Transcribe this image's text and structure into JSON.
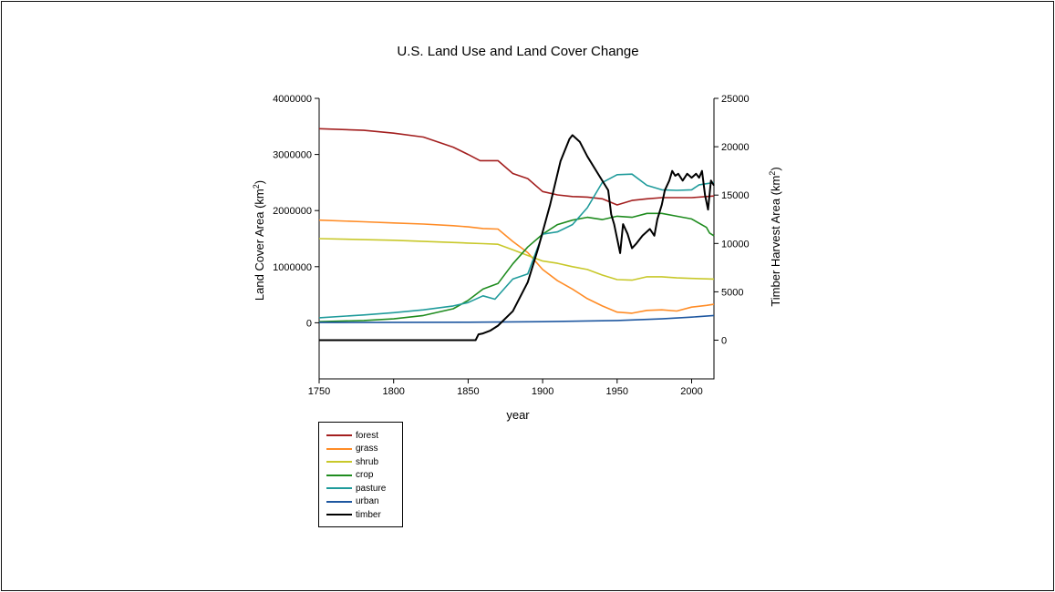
{
  "chart_data": {
    "type": "line",
    "title": "U.S. Land Use and Land Cover Change",
    "xlabel": "year",
    "ylabel_left": "Land Cover Area (km²)",
    "ylabel_right": "Timber Harvest Area (km²)",
    "xlim": [
      1750,
      2015
    ],
    "ylim_left": [
      -1000000,
      4000000
    ],
    "ylim_right": [
      -4000,
      25000
    ],
    "x_ticks": [
      1750,
      1800,
      1850,
      1900,
      1950,
      2000
    ],
    "y_ticks_left": [
      "4000000",
      "3000000",
      "2000000",
      "1000000",
      "0"
    ],
    "y_ticks_left_values": [
      4000000,
      3000000,
      2000000,
      1000000,
      0
    ],
    "y_ticks_right": [
      "25000",
      "20000",
      "15000",
      "10000",
      "5000",
      "0"
    ],
    "y_ticks_right_values": [
      25000,
      20000,
      15000,
      10000,
      5000,
      0
    ],
    "legend_placement": "bottom-left, below chart",
    "series": [
      {
        "name": "forest",
        "axis": "left",
        "color": "#a31f1f",
        "points": [
          [
            1750,
            3460000
          ],
          [
            1780,
            3430000
          ],
          [
            1800,
            3380000
          ],
          [
            1820,
            3310000
          ],
          [
            1840,
            3130000
          ],
          [
            1850,
            3000000
          ],
          [
            1858,
            2890000
          ],
          [
            1870,
            2890000
          ],
          [
            1880,
            2660000
          ],
          [
            1890,
            2570000
          ],
          [
            1900,
            2340000
          ],
          [
            1910,
            2280000
          ],
          [
            1920,
            2250000
          ],
          [
            1930,
            2240000
          ],
          [
            1940,
            2210000
          ],
          [
            1950,
            2100000
          ],
          [
            1960,
            2180000
          ],
          [
            1970,
            2210000
          ],
          [
            1980,
            2230000
          ],
          [
            1990,
            2230000
          ],
          [
            2000,
            2230000
          ],
          [
            2010,
            2250000
          ],
          [
            2015,
            2260000
          ]
        ]
      },
      {
        "name": "grass",
        "axis": "left",
        "color": "#ff8c26",
        "points": [
          [
            1750,
            1830000
          ],
          [
            1780,
            1800000
          ],
          [
            1800,
            1780000
          ],
          [
            1820,
            1760000
          ],
          [
            1840,
            1730000
          ],
          [
            1850,
            1710000
          ],
          [
            1860,
            1680000
          ],
          [
            1870,
            1670000
          ],
          [
            1880,
            1450000
          ],
          [
            1890,
            1250000
          ],
          [
            1900,
            950000
          ],
          [
            1910,
            750000
          ],
          [
            1920,
            600000
          ],
          [
            1930,
            430000
          ],
          [
            1940,
            300000
          ],
          [
            1950,
            190000
          ],
          [
            1960,
            170000
          ],
          [
            1970,
            220000
          ],
          [
            1980,
            230000
          ],
          [
            1990,
            210000
          ],
          [
            2000,
            280000
          ],
          [
            2010,
            310000
          ],
          [
            2015,
            330000
          ]
        ]
      },
      {
        "name": "shrub",
        "axis": "left",
        "color": "#c8c82a",
        "points": [
          [
            1750,
            1500000
          ],
          [
            1800,
            1470000
          ],
          [
            1850,
            1420000
          ],
          [
            1860,
            1410000
          ],
          [
            1870,
            1400000
          ],
          [
            1880,
            1300000
          ],
          [
            1890,
            1200000
          ],
          [
            1900,
            1100000
          ],
          [
            1910,
            1060000
          ],
          [
            1920,
            1000000
          ],
          [
            1930,
            950000
          ],
          [
            1940,
            850000
          ],
          [
            1950,
            770000
          ],
          [
            1960,
            760000
          ],
          [
            1970,
            820000
          ],
          [
            1980,
            820000
          ],
          [
            1990,
            800000
          ],
          [
            2000,
            790000
          ],
          [
            2015,
            780000
          ]
        ]
      },
      {
        "name": "crop",
        "axis": "left",
        "color": "#1f8c1f",
        "points": [
          [
            1750,
            20000
          ],
          [
            1780,
            40000
          ],
          [
            1800,
            70000
          ],
          [
            1820,
            130000
          ],
          [
            1840,
            250000
          ],
          [
            1850,
            400000
          ],
          [
            1860,
            600000
          ],
          [
            1870,
            700000
          ],
          [
            1880,
            1050000
          ],
          [
            1890,
            1350000
          ],
          [
            1900,
            1580000
          ],
          [
            1910,
            1750000
          ],
          [
            1920,
            1830000
          ],
          [
            1930,
            1880000
          ],
          [
            1940,
            1840000
          ],
          [
            1950,
            1900000
          ],
          [
            1960,
            1880000
          ],
          [
            1970,
            1950000
          ],
          [
            1980,
            1950000
          ],
          [
            1990,
            1900000
          ],
          [
            2000,
            1850000
          ],
          [
            2010,
            1700000
          ],
          [
            2012,
            1600000
          ],
          [
            2015,
            1550000
          ]
        ]
      },
      {
        "name": "pasture",
        "axis": "left",
        "color": "#1f9b9b",
        "points": [
          [
            1750,
            90000
          ],
          [
            1780,
            140000
          ],
          [
            1800,
            180000
          ],
          [
            1820,
            230000
          ],
          [
            1840,
            300000
          ],
          [
            1850,
            360000
          ],
          [
            1860,
            480000
          ],
          [
            1868,
            420000
          ],
          [
            1880,
            780000
          ],
          [
            1890,
            870000
          ],
          [
            1900,
            1580000
          ],
          [
            1910,
            1620000
          ],
          [
            1920,
            1750000
          ],
          [
            1930,
            2050000
          ],
          [
            1940,
            2500000
          ],
          [
            1950,
            2640000
          ],
          [
            1960,
            2650000
          ],
          [
            1970,
            2450000
          ],
          [
            1980,
            2370000
          ],
          [
            1990,
            2360000
          ],
          [
            2000,
            2370000
          ],
          [
            2005,
            2460000
          ],
          [
            2015,
            2500000
          ]
        ]
      },
      {
        "name": "urban",
        "axis": "left",
        "color": "#1e57a0",
        "points": [
          [
            1750,
            5000
          ],
          [
            1850,
            10000
          ],
          [
            1900,
            20000
          ],
          [
            1950,
            40000
          ],
          [
            1980,
            70000
          ],
          [
            2000,
            100000
          ],
          [
            2015,
            130000
          ]
        ]
      },
      {
        "name": "timber",
        "axis": "right",
        "color": "#000000",
        "points": [
          [
            1750,
            0
          ],
          [
            1855,
            0
          ],
          [
            1857,
            600
          ],
          [
            1860,
            700
          ],
          [
            1865,
            1000
          ],
          [
            1870,
            1500
          ],
          [
            1880,
            3000
          ],
          [
            1890,
            6000
          ],
          [
            1897,
            9500
          ],
          [
            1905,
            14000
          ],
          [
            1912,
            18500
          ],
          [
            1918,
            20800
          ],
          [
            1920,
            21200
          ],
          [
            1925,
            20500
          ],
          [
            1930,
            19000
          ],
          [
            1938,
            17000
          ],
          [
            1944,
            15500
          ],
          [
            1946,
            13000
          ],
          [
            1948,
            12000
          ],
          [
            1950,
            10500
          ],
          [
            1952,
            9000
          ],
          [
            1954,
            12000
          ],
          [
            1957,
            11000
          ],
          [
            1960,
            9500
          ],
          [
            1963,
            10000
          ],
          [
            1967,
            10800
          ],
          [
            1972,
            11500
          ],
          [
            1975,
            10800
          ],
          [
            1977,
            12500
          ],
          [
            1980,
            14000
          ],
          [
            1982,
            15500
          ],
          [
            1985,
            16500
          ],
          [
            1987,
            17500
          ],
          [
            1989,
            17000
          ],
          [
            1991,
            17200
          ],
          [
            1994,
            16500
          ],
          [
            1997,
            17200
          ],
          [
            2000,
            16800
          ],
          [
            2003,
            17200
          ],
          [
            2005,
            16800
          ],
          [
            2007,
            17500
          ],
          [
            2009,
            15000
          ],
          [
            2011,
            13500
          ],
          [
            2013,
            16500
          ],
          [
            2015,
            16000
          ]
        ]
      }
    ]
  }
}
